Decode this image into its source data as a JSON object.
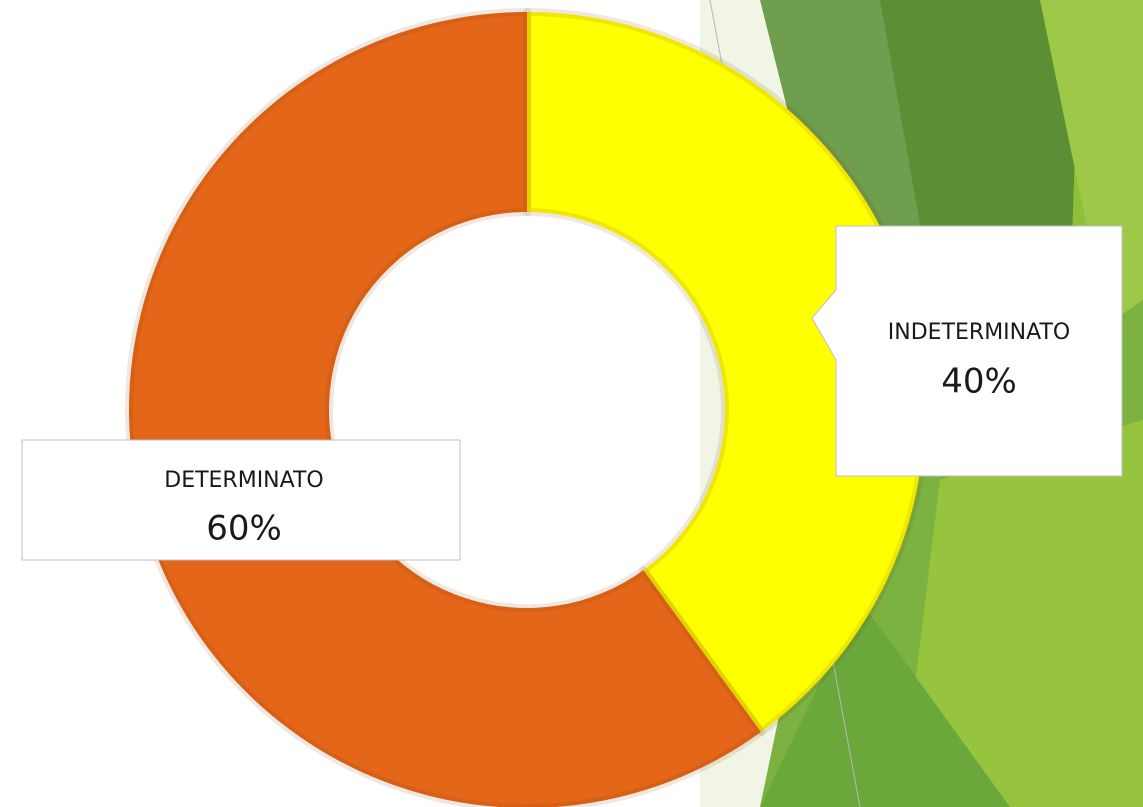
{
  "chart_data": {
    "type": "donut",
    "categories": [
      "INDETERMINATO",
      "DETERMINATO"
    ],
    "values": [
      40,
      60
    ],
    "value_labels": [
      "40%",
      "60%"
    ],
    "colors": [
      "#ffff00",
      "#e46618"
    ]
  }
}
